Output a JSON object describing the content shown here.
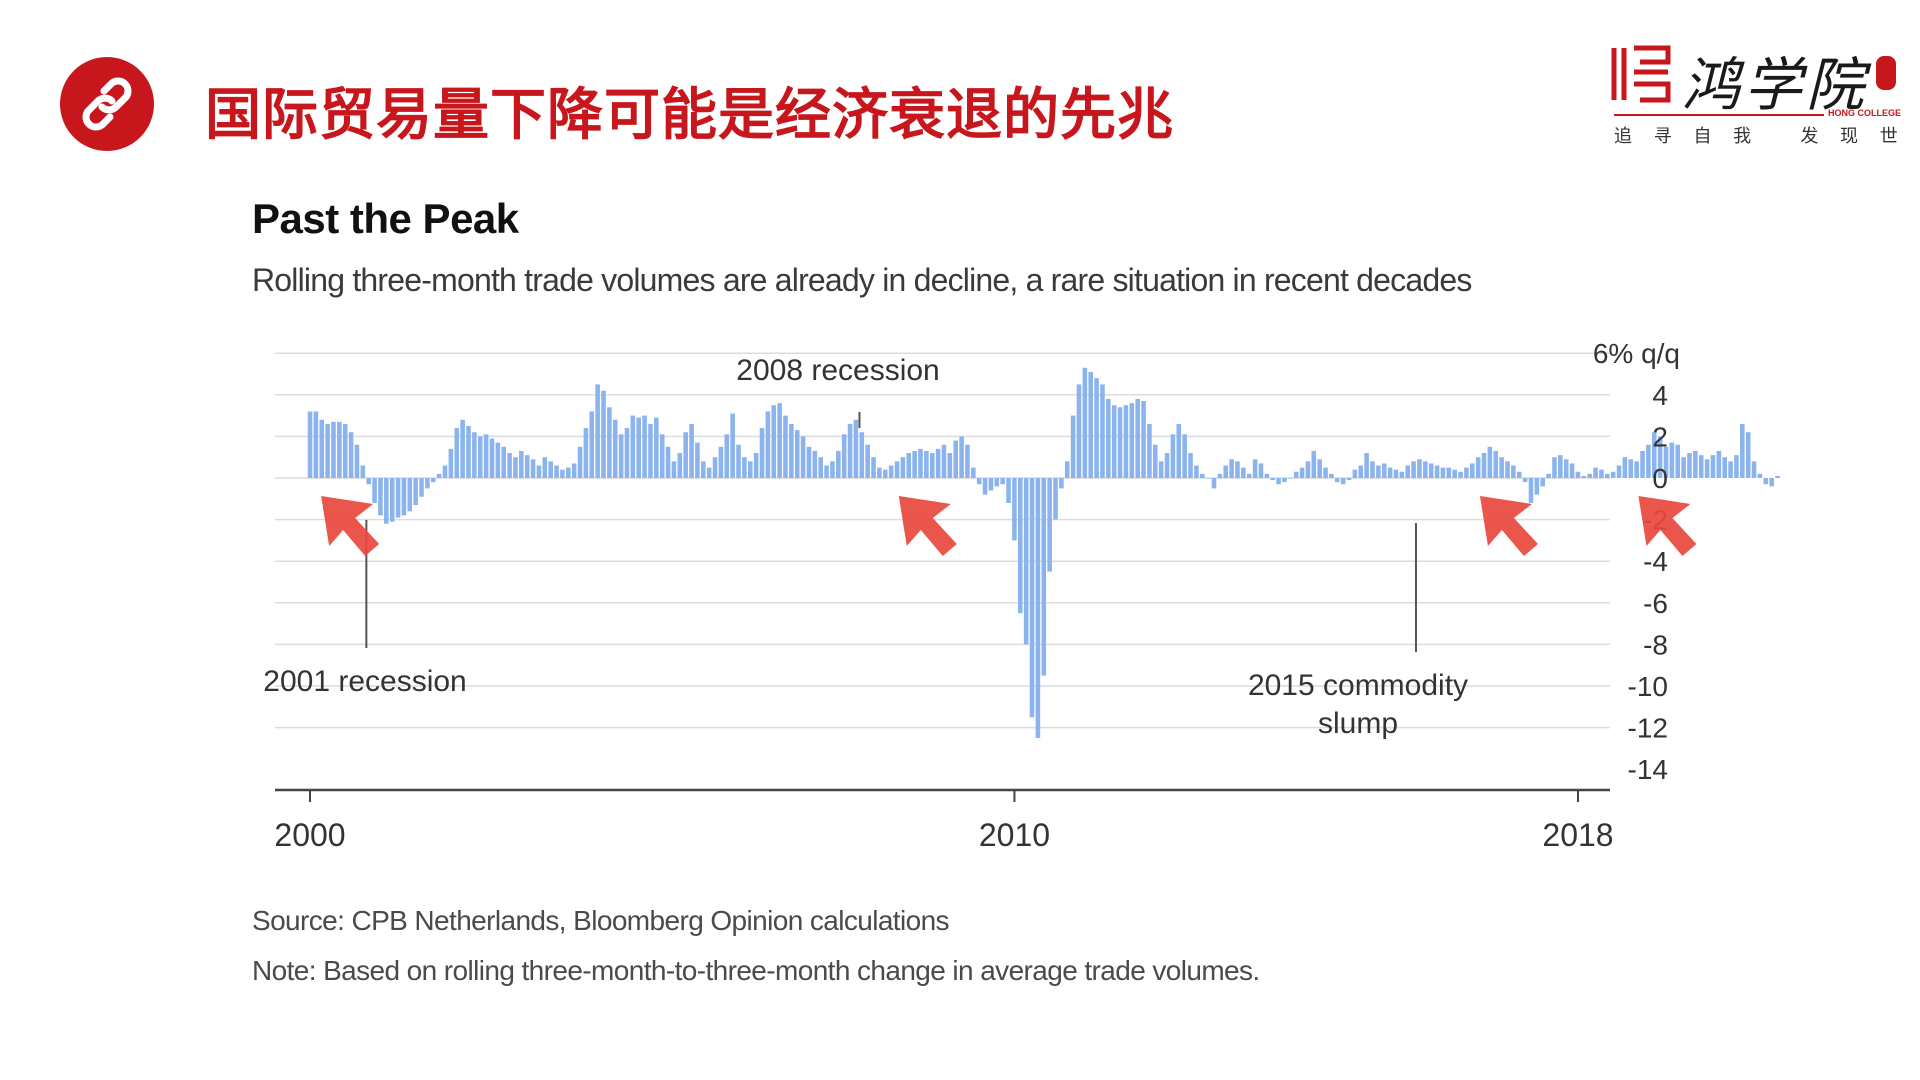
{
  "slide": {
    "title": "国际贸易量下降可能是经济衰退的先兆",
    "brand": {
      "name": "鸿学院",
      "english": "HONG COLLEGE",
      "slogan": "追 寻 自 我   发 现 世 界"
    }
  },
  "colors": {
    "accent": "#c8161d",
    "bar": "#8bb4ee",
    "gridline": "#dcdcdc",
    "arrow": "#e8483c"
  },
  "icons": {
    "badge": "link-icon",
    "brand_mark": "brand-logo-icon"
  },
  "chart_data": {
    "type": "bar",
    "title": "Past the Peak",
    "subtitle": "Rolling three-month trade volumes are already in decline, a rare situation in recent decades",
    "ylabel": "6% q/q",
    "ylim": [
      -14,
      6
    ],
    "y_ticks": [
      4,
      2,
      0,
      -2,
      -4,
      -6,
      -8,
      -10,
      -12,
      -14
    ],
    "xlim": [
      2000,
      2018.5
    ],
    "x_ticks": [
      2000,
      2010,
      2018
    ],
    "grid": true,
    "legend": "none",
    "annotations": [
      {
        "text": "2001 recession",
        "x": 2000.8
      },
      {
        "text": "2008 recession",
        "x": 2007.8
      },
      {
        "text": "2015 commodity",
        "text2": "slump",
        "x": 2015.7
      }
    ],
    "highlight_arrows_x": [
      2000.3,
      2008.5,
      2016.75,
      2019.0
    ],
    "source": "Source: CPB Netherlands, Bloomberg Opinion calculations",
    "note": "Note: Based on rolling three-month-to-three-month change in average trade volumes.",
    "series": [
      {
        "start": 2000.0,
        "step": 0.08333,
        "values": [
          3.2,
          3.2,
          2.8,
          2.6,
          2.7,
          2.7,
          2.6,
          2.2,
          1.6,
          0.6,
          -0.3,
          -1.2,
          -1.8,
          -2.2,
          -2.1,
          -1.9,
          -1.8,
          -1.6,
          -1.3,
          -0.9,
          -0.5,
          -0.2,
          0.2,
          0.6,
          1.4,
          2.4,
          2.8,
          2.5,
          2.2,
          2.0,
          2.1,
          1.9,
          1.7,
          1.5,
          1.2,
          1.0,
          1.3,
          1.1,
          0.9,
          0.6,
          1.0,
          0.8,
          0.6,
          0.4,
          0.5,
          0.7,
          1.5,
          2.4,
          3.2,
          4.5,
          4.2,
          3.4,
          2.8,
          2.1,
          2.4,
          3.0,
          2.9,
          3.0,
          2.6,
          2.9,
          2.1,
          1.5,
          0.8,
          1.2,
          2.2,
          2.6,
          1.7,
          0.8,
          0.5,
          1.0,
          1.5,
          2.1,
          3.1,
          1.6,
          1.0,
          0.8,
          1.2,
          2.4,
          3.2,
          3.5,
          3.6,
          3.0,
          2.6,
          2.3,
          2.0,
          1.5,
          1.3,
          1.0,
          0.6,
          0.8,
          1.3,
          2.1,
          2.6,
          2.8,
          2.2,
          1.6,
          1.0,
          0.5,
          0.4,
          0.6,
          0.8,
          1.0,
          1.2,
          1.3,
          1.4,
          1.3,
          1.2,
          1.4,
          1.6,
          1.2,
          1.8,
          2.0,
          1.6,
          0.5,
          -0.3,
          -0.8,
          -0.6,
          -0.4,
          -0.3,
          -1.2,
          -3.0,
          -6.5,
          -8.0,
          -11.5,
          -12.5,
          -9.5,
          -4.5,
          -2.0,
          -0.5,
          0.8,
          3.0,
          4.5,
          5.3,
          5.1,
          4.8,
          4.5,
          3.8,
          3.5,
          3.4,
          3.5,
          3.6,
          3.8,
          3.7,
          2.6,
          1.6,
          0.8,
          1.2,
          2.1,
          2.6,
          2.1,
          1.2,
          0.6,
          0.2,
          0.0,
          -0.5,
          0.2,
          0.6,
          0.9,
          0.8,
          0.5,
          0.2,
          0.9,
          0.7,
          0.2,
          -0.1,
          -0.3,
          -0.2,
          0.0,
          0.3,
          0.5,
          0.8,
          1.3,
          0.9,
          0.5,
          0.2,
          -0.2,
          -0.3,
          -0.1,
          0.4,
          0.6,
          1.2,
          0.8,
          0.6,
          0.7,
          0.5,
          0.4,
          0.3,
          0.6,
          0.8,
          0.9,
          0.8,
          0.7,
          0.6,
          0.5,
          0.5,
          0.4,
          0.3,
          0.5,
          0.7,
          1.0,
          1.2,
          1.5,
          1.3,
          1.0,
          0.8,
          0.6,
          0.3,
          -0.2,
          -1.2,
          -0.8,
          -0.4,
          0.2,
          1.0,
          1.1,
          0.9,
          0.7,
          0.3,
          0.1,
          0.2,
          0.5,
          0.4,
          0.2,
          0.3,
          0.6,
          1.0,
          0.9,
          0.8,
          1.3,
          1.6,
          2.2,
          2.0,
          1.5,
          1.7,
          1.6,
          1.0,
          1.2,
          1.3,
          1.1,
          0.9,
          1.1,
          1.3,
          1.0,
          0.8,
          1.1,
          2.6,
          2.2,
          0.8,
          0.2,
          -0.3,
          -0.4,
          0.1
        ]
      }
    ]
  }
}
